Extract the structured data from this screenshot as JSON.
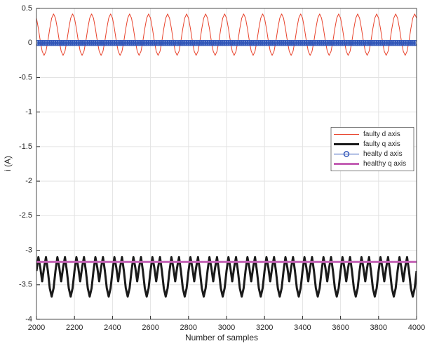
{
  "chart_data": {
    "type": "line",
    "xlabel": "Number of samples",
    "ylabel": "i (A)",
    "xlim": [
      2000,
      4000
    ],
    "xticks": [
      2000,
      2200,
      2400,
      2600,
      2800,
      3000,
      3200,
      3400,
      3600,
      3800,
      4000
    ],
    "ylim": [
      -4,
      0.5
    ],
    "yticks": [
      -4,
      -3.5,
      -3,
      -2.5,
      -2,
      -1.5,
      -1,
      -0.5,
      0,
      0.5
    ],
    "grid": true,
    "legend": "east",
    "x": [
      2000,
      2010,
      2020,
      2030,
      2040,
      2050,
      2060,
      2070,
      2080,
      2090,
      2100,
      2110,
      2120,
      2130,
      2140,
      2150,
      2160,
      2170,
      2180,
      2190,
      2200,
      2210,
      2220,
      2230,
      2240,
      2250,
      2260,
      2270,
      2280,
      2290,
      2300,
      2310,
      2320,
      2330,
      2340,
      2350,
      2360,
      2370,
      2380,
      2390,
      2400,
      2410,
      2420,
      2430,
      2440,
      2450,
      2460,
      2470,
      2480,
      2490,
      2500,
      2510,
      2520,
      2530,
      2540,
      2550,
      2560,
      2570,
      2580,
      2590,
      2600,
      2610,
      2620,
      2630,
      2640,
      2650,
      2660,
      2670,
      2680,
      2690,
      2700,
      2710,
      2720,
      2730,
      2740,
      2750,
      2760,
      2770,
      2780,
      2790,
      2800,
      2810,
      2820,
      2830,
      2840,
      2850,
      2860,
      2870,
      2880,
      2890,
      2900,
      2910,
      2920,
      2930,
      2940,
      2950,
      2960,
      2970,
      2980,
      2990,
      3000,
      3010,
      3020,
      3030,
      3040,
      3050,
      3060,
      3070,
      3080,
      3090,
      3100,
      3110,
      3120,
      3130,
      3140,
      3150,
      3160,
      3170,
      3180,
      3190,
      3200,
      3210,
      3220,
      3230,
      3240,
      3250,
      3260,
      3270,
      3280,
      3290,
      3300,
      3310,
      3320,
      3330,
      3340,
      3350,
      3360,
      3370,
      3380,
      3390,
      3400,
      3410,
      3420,
      3430,
      3440,
      3450,
      3460,
      3470,
      3480,
      3490,
      3500,
      3510,
      3520,
      3530,
      3540,
      3550,
      3560,
      3570,
      3580,
      3590,
      3600,
      3610,
      3620,
      3630,
      3640,
      3650,
      3660,
      3670,
      3680,
      3690,
      3700,
      3710,
      3720,
      3730,
      3740,
      3750,
      3760,
      3770,
      3780,
      3790,
      3800,
      3810,
      3820,
      3830,
      3840,
      3850,
      3860,
      3870,
      3880,
      3890,
      3900,
      3910,
      3920,
      3930,
      3940,
      3950,
      3960,
      3970,
      3980,
      3990,
      4000
    ],
    "series": [
      {
        "name": "faulty d axis",
        "color": "#e8412a",
        "width": 1,
        "values": [
          0.36,
          0.21,
          0.03,
          -0.12,
          -0.18,
          -0.12,
          0.03,
          0.21,
          0.36,
          0.42,
          0.36,
          0.21,
          0.03,
          -0.12,
          -0.18,
          -0.12,
          0.03,
          0.21,
          0.36,
          0.42,
          0.36,
          0.21,
          0.03,
          -0.12,
          -0.18,
          -0.12,
          0.03,
          0.21,
          0.36,
          0.42,
          0.36,
          0.21,
          0.03,
          -0.12,
          -0.18,
          -0.12,
          0.03,
          0.21,
          0.36,
          0.42,
          0.36,
          0.21,
          0.03,
          -0.12,
          -0.18,
          -0.12,
          0.03,
          0.21,
          0.36,
          0.42,
          0.36,
          0.21,
          0.03,
          -0.12,
          -0.18,
          -0.12,
          0.03,
          0.21,
          0.36,
          0.42,
          0.36,
          0.21,
          0.03,
          -0.12,
          -0.18,
          -0.12,
          0.03,
          0.21,
          0.36,
          0.42,
          0.36,
          0.21,
          0.03,
          -0.12,
          -0.18,
          -0.12,
          0.03,
          0.21,
          0.36,
          0.42,
          0.36,
          0.21,
          0.03,
          -0.12,
          -0.18,
          -0.12,
          0.03,
          0.21,
          0.36,
          0.42,
          0.36,
          0.21,
          0.03,
          -0.12,
          -0.18,
          -0.12,
          0.03,
          0.21,
          0.36,
          0.42,
          0.36,
          0.21,
          0.03,
          -0.12,
          -0.18,
          -0.12,
          0.03,
          0.21,
          0.36,
          0.42,
          0.36,
          0.21,
          0.03,
          -0.12,
          -0.18,
          -0.12,
          0.03,
          0.21,
          0.36,
          0.42,
          0.36,
          0.21,
          0.03,
          -0.12,
          -0.18,
          -0.12,
          0.03,
          0.21,
          0.36,
          0.42,
          0.36,
          0.21,
          0.03,
          -0.12,
          -0.18,
          -0.12,
          0.03,
          0.21,
          0.36,
          0.42,
          0.36,
          0.21,
          0.03,
          -0.12,
          -0.18,
          -0.12,
          0.03,
          0.21,
          0.36,
          0.42,
          0.36,
          0.21,
          0.03,
          -0.12,
          -0.18,
          -0.12,
          0.03,
          0.21,
          0.36,
          0.42,
          0.36,
          0.21,
          0.03,
          -0.12,
          -0.18,
          -0.12,
          0.03,
          0.21,
          0.36,
          0.42,
          0.36,
          0.21,
          0.03,
          -0.12,
          -0.18,
          -0.12,
          0.03,
          0.21,
          0.36,
          0.42,
          0.36,
          0.21,
          0.03,
          -0.12,
          -0.18,
          -0.12,
          0.03,
          0.21,
          0.36,
          0.42,
          0.36,
          0.21,
          0.03,
          -0.12,
          -0.18,
          -0.12,
          0.03,
          0.21,
          0.36,
          0.42,
          0.36
        ]
      },
      {
        "name": "faulty q axis",
        "color": "#1a1a1a",
        "width": 3,
        "values": [
          -3.3,
          -3.1,
          -3.25,
          -3.45,
          -3.25,
          -3.1,
          -3.3,
          -3.55,
          -3.67,
          -3.55,
          -3.3,
          -3.1,
          -3.25,
          -3.45,
          -3.25,
          -3.1,
          -3.3,
          -3.55,
          -3.67,
          -3.55,
          -3.3,
          -3.1,
          -3.25,
          -3.45,
          -3.25,
          -3.1,
          -3.3,
          -3.55,
          -3.67,
          -3.55,
          -3.3,
          -3.1,
          -3.25,
          -3.45,
          -3.25,
          -3.1,
          -3.3,
          -3.55,
          -3.67,
          -3.55,
          -3.3,
          -3.1,
          -3.25,
          -3.45,
          -3.25,
          -3.1,
          -3.3,
          -3.55,
          -3.67,
          -3.55,
          -3.3,
          -3.1,
          -3.25,
          -3.45,
          -3.25,
          -3.1,
          -3.3,
          -3.55,
          -3.67,
          -3.55,
          -3.3,
          -3.1,
          -3.25,
          -3.45,
          -3.25,
          -3.1,
          -3.3,
          -3.55,
          -3.67,
          -3.55,
          -3.3,
          -3.1,
          -3.25,
          -3.45,
          -3.25,
          -3.1,
          -3.3,
          -3.55,
          -3.67,
          -3.55,
          -3.3,
          -3.1,
          -3.25,
          -3.45,
          -3.25,
          -3.1,
          -3.3,
          -3.55,
          -3.67,
          -3.55,
          -3.3,
          -3.1,
          -3.25,
          -3.45,
          -3.25,
          -3.1,
          -3.3,
          -3.55,
          -3.67,
          -3.55,
          -3.3,
          -3.1,
          -3.25,
          -3.45,
          -3.25,
          -3.1,
          -3.3,
          -3.55,
          -3.67,
          -3.55,
          -3.3,
          -3.1,
          -3.25,
          -3.45,
          -3.25,
          -3.1,
          -3.3,
          -3.55,
          -3.67,
          -3.55,
          -3.3,
          -3.1,
          -3.25,
          -3.45,
          -3.25,
          -3.1,
          -3.3,
          -3.55,
          -3.67,
          -3.55,
          -3.3,
          -3.1,
          -3.25,
          -3.45,
          -3.25,
          -3.1,
          -3.3,
          -3.55,
          -3.67,
          -3.55,
          -3.3,
          -3.1,
          -3.25,
          -3.45,
          -3.25,
          -3.1,
          -3.3,
          -3.55,
          -3.67,
          -3.55,
          -3.3,
          -3.1,
          -3.25,
          -3.45,
          -3.25,
          -3.1,
          -3.3,
          -3.55,
          -3.67,
          -3.55,
          -3.3,
          -3.1,
          -3.25,
          -3.45,
          -3.25,
          -3.1,
          -3.3,
          -3.55,
          -3.67,
          -3.55,
          -3.3,
          -3.1,
          -3.25,
          -3.45,
          -3.25,
          -3.1,
          -3.3,
          -3.55,
          -3.67,
          -3.55,
          -3.3,
          -3.1,
          -3.25,
          -3.45,
          -3.25,
          -3.1,
          -3.3,
          -3.55,
          -3.67,
          -3.55,
          -3.3,
          -3.1,
          -3.25,
          -3.45,
          -3.25,
          -3.1,
          -3.3,
          -3.55,
          -3.67,
          -3.55,
          -3.3
        ]
      },
      {
        "name": "healty d axis",
        "color": "#2f55b8",
        "width": 1,
        "marker": "o",
        "values": [
          0,
          0,
          0,
          0,
          0,
          0,
          0,
          0,
          0,
          0,
          0,
          0,
          0,
          0,
          0,
          0,
          0,
          0,
          0,
          0,
          0,
          0,
          0,
          0,
          0,
          0,
          0,
          0,
          0,
          0,
          0,
          0,
          0,
          0,
          0,
          0,
          0,
          0,
          0,
          0,
          0,
          0,
          0,
          0,
          0,
          0,
          0,
          0,
          0,
          0,
          0,
          0,
          0,
          0,
          0,
          0,
          0,
          0,
          0,
          0,
          0,
          0,
          0,
          0,
          0,
          0,
          0,
          0,
          0,
          0,
          0,
          0,
          0,
          0,
          0,
          0,
          0,
          0,
          0,
          0,
          0,
          0,
          0,
          0,
          0,
          0,
          0,
          0,
          0,
          0,
          0,
          0,
          0,
          0,
          0,
          0,
          0,
          0,
          0,
          0,
          0,
          0,
          0,
          0,
          0,
          0,
          0,
          0,
          0,
          0,
          0,
          0,
          0,
          0,
          0,
          0,
          0,
          0,
          0,
          0,
          0,
          0,
          0,
          0,
          0,
          0,
          0,
          0,
          0,
          0,
          0,
          0,
          0,
          0,
          0,
          0,
          0,
          0,
          0,
          0,
          0,
          0,
          0,
          0,
          0,
          0,
          0,
          0,
          0,
          0,
          0,
          0,
          0,
          0,
          0,
          0,
          0,
          0,
          0,
          0,
          0,
          0,
          0,
          0,
          0,
          0,
          0,
          0,
          0,
          0,
          0,
          0,
          0,
          0,
          0,
          0,
          0,
          0,
          0,
          0,
          0,
          0,
          0,
          0,
          0,
          0,
          0,
          0,
          0,
          0,
          0,
          0,
          0,
          0,
          0,
          0,
          0,
          0,
          0,
          0,
          0
        ]
      },
      {
        "name": "healthy q axis",
        "color": "#c461b5",
        "width": 3,
        "values": [
          -3.17,
          -3.17,
          -3.17,
          -3.17,
          -3.17,
          -3.17,
          -3.17,
          -3.17,
          -3.17,
          -3.17,
          -3.17,
          -3.17,
          -3.17,
          -3.17,
          -3.17,
          -3.17,
          -3.17,
          -3.17,
          -3.17,
          -3.17,
          -3.17,
          -3.17,
          -3.17,
          -3.17,
          -3.17,
          -3.17,
          -3.17,
          -3.17,
          -3.17,
          -3.17,
          -3.17,
          -3.17,
          -3.17,
          -3.17,
          -3.17,
          -3.17,
          -3.17,
          -3.17,
          -3.17,
          -3.17,
          -3.17,
          -3.17,
          -3.17,
          -3.17,
          -3.17,
          -3.17,
          -3.17,
          -3.17,
          -3.17,
          -3.17,
          -3.17,
          -3.17,
          -3.17,
          -3.17,
          -3.17,
          -3.17,
          -3.17,
          -3.17,
          -3.17,
          -3.17,
          -3.17,
          -3.17,
          -3.17,
          -3.17,
          -3.17,
          -3.17,
          -3.17,
          -3.17,
          -3.17,
          -3.17,
          -3.17,
          -3.17,
          -3.17,
          -3.17,
          -3.17,
          -3.17,
          -3.17,
          -3.17,
          -3.17,
          -3.17,
          -3.17,
          -3.17,
          -3.17,
          -3.17,
          -3.17,
          -3.17,
          -3.17,
          -3.17,
          -3.17,
          -3.17,
          -3.17,
          -3.17,
          -3.17,
          -3.17,
          -3.17,
          -3.17,
          -3.17,
          -3.17,
          -3.17,
          -3.17,
          -3.17,
          -3.17,
          -3.17,
          -3.17,
          -3.17,
          -3.17,
          -3.17,
          -3.17,
          -3.17,
          -3.17,
          -3.17,
          -3.17,
          -3.17,
          -3.17,
          -3.17,
          -3.17,
          -3.17,
          -3.17,
          -3.17,
          -3.17,
          -3.17,
          -3.17,
          -3.17,
          -3.17,
          -3.17,
          -3.17,
          -3.17,
          -3.17,
          -3.17,
          -3.17,
          -3.17,
          -3.17,
          -3.17,
          -3.17,
          -3.17,
          -3.17,
          -3.17,
          -3.17,
          -3.17,
          -3.17,
          -3.17,
          -3.17,
          -3.17,
          -3.17,
          -3.17,
          -3.17,
          -3.17,
          -3.17,
          -3.17,
          -3.17,
          -3.17,
          -3.17,
          -3.17,
          -3.17,
          -3.17,
          -3.17,
          -3.17,
          -3.17,
          -3.17,
          -3.17,
          -3.17,
          -3.17,
          -3.17,
          -3.17,
          -3.17,
          -3.17,
          -3.17,
          -3.17,
          -3.17,
          -3.17,
          -3.17,
          -3.17,
          -3.17,
          -3.17,
          -3.17,
          -3.17,
          -3.17,
          -3.17,
          -3.17,
          -3.17,
          -3.17,
          -3.17,
          -3.17,
          -3.17,
          -3.17,
          -3.17,
          -3.17,
          -3.17,
          -3.17,
          -3.17,
          -3.17,
          -3.17,
          -3.17,
          -3.17,
          -3.17,
          -3.17,
          -3.17,
          -3.17,
          -3.17,
          -3.17,
          -3.17
        ]
      }
    ]
  }
}
